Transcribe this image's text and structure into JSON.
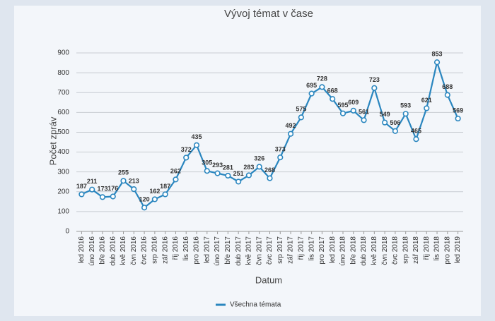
{
  "chart_data": {
    "type": "line",
    "title": "Vývoj témat v čase",
    "x_label": "Datum",
    "y_label": "Počet zpráv",
    "categories": [
      "led 2016",
      "úno 2016",
      "bře 2016",
      "dub 2016",
      "kvě 2016",
      "čvn 2016",
      "čvc 2016",
      "srp 2016",
      "zář 2016",
      "říj 2016",
      "lis 2016",
      "pro 2016",
      "led 2017",
      "úno 2017",
      "bře 2017",
      "dub 2017",
      "kvě 2017",
      "čvn 2017",
      "čvc 2017",
      "srp 2017",
      "zář 2017",
      "říj 2017",
      "lis 2017",
      "pro 2017",
      "led 2018",
      "úno 2018",
      "bře 2018",
      "dub 2018",
      "kvě 2018",
      "čvn 2018",
      "čvc 2018",
      "srp 2018",
      "zář 2018",
      "říj 2018",
      "lis 2018",
      "pro 2018",
      "led 2019"
    ],
    "series": [
      {
        "name": "Všechna témata",
        "color": "#2a86bf",
        "values": [
          187,
          211,
          173,
          176,
          255,
          213,
          120,
          162,
          187,
          262,
          372,
          435,
          305,
          293,
          281,
          251,
          283,
          326,
          268,
          373,
          492,
          575,
          695,
          728,
          668,
          595,
          609,
          561,
          723,
          549,
          506,
          593,
          465,
          621,
          853,
          688,
          569
        ]
      }
    ],
    "ylim": [
      0,
      900
    ],
    "yticks": [
      0,
      100,
      200,
      300,
      400,
      500,
      600,
      700,
      800,
      900
    ],
    "grid": true,
    "legend": "bottom"
  }
}
